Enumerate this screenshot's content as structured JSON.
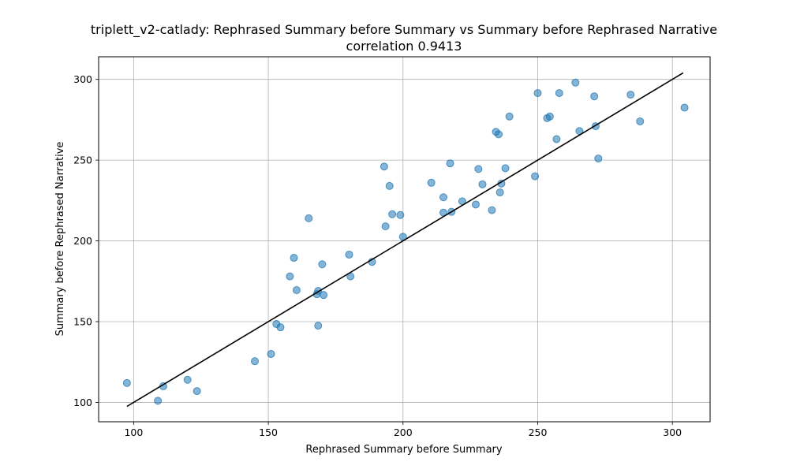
{
  "chart_data": {
    "type": "scatter",
    "title": "triplett_v2-catlady: Rephrased Summary before Summary vs Summary before Rephrased Narrative",
    "subtitle": "correlation 0.9413",
    "xlabel": "Rephrased Summary before Summary",
    "ylabel": "Summary before Rephrased Narrative",
    "xlim": [
      87,
      314
    ],
    "ylim": [
      88,
      314
    ],
    "xticks": [
      100,
      150,
      200,
      250,
      300
    ],
    "yticks": [
      100,
      150,
      200,
      250,
      300
    ],
    "grid": true,
    "point_color": "#1f77b4",
    "line_color": "#000000",
    "fit_line": {
      "x": [
        97.5,
        304
      ],
      "y": [
        97.5,
        304
      ]
    },
    "points": [
      [
        97.5,
        112
      ],
      [
        109,
        101
      ],
      [
        111,
        110
      ],
      [
        120,
        114
      ],
      [
        123.5,
        107
      ],
      [
        145,
        125.5
      ],
      [
        151,
        130
      ],
      [
        153,
        148.5
      ],
      [
        154.5,
        146.5
      ],
      [
        158,
        178
      ],
      [
        159.5,
        189.5
      ],
      [
        160.5,
        169.5
      ],
      [
        165,
        214
      ],
      [
        168,
        167
      ],
      [
        168.5,
        169
      ],
      [
        168.5,
        147.5
      ],
      [
        170,
        185.5
      ],
      [
        170.5,
        166.5
      ],
      [
        180,
        191.5
      ],
      [
        180.5,
        178
      ],
      [
        188.5,
        187
      ],
      [
        193,
        246
      ],
      [
        193.5,
        209
      ],
      [
        195,
        234
      ],
      [
        196,
        216.5
      ],
      [
        199,
        216
      ],
      [
        200,
        202.5
      ],
      [
        210.5,
        236
      ],
      [
        215,
        227
      ],
      [
        215,
        217.5
      ],
      [
        217.5,
        248
      ],
      [
        218,
        218
      ],
      [
        222,
        224.5
      ],
      [
        227,
        222.5
      ],
      [
        228,
        244.5
      ],
      [
        229.5,
        235
      ],
      [
        233,
        219
      ],
      [
        234.5,
        267.5
      ],
      [
        235.5,
        266
      ],
      [
        236,
        230
      ],
      [
        236.5,
        235.5
      ],
      [
        238,
        245
      ],
      [
        239.5,
        277
      ],
      [
        249,
        240
      ],
      [
        250,
        291.5
      ],
      [
        253.5,
        276
      ],
      [
        254.5,
        277
      ],
      [
        257,
        263
      ],
      [
        258,
        291.5
      ],
      [
        264,
        298
      ],
      [
        265.5,
        268
      ],
      [
        271,
        289.5
      ],
      [
        271.5,
        271
      ],
      [
        272.5,
        251
      ],
      [
        284.5,
        290.5
      ],
      [
        288,
        274
      ],
      [
        304.5,
        282.5
      ]
    ]
  }
}
